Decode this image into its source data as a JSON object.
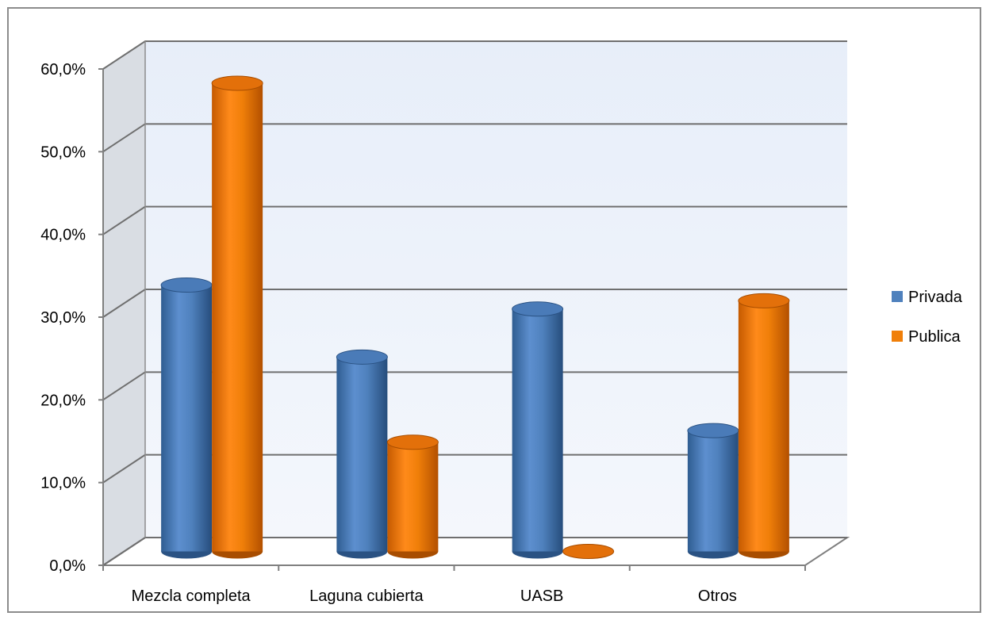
{
  "chart_data": {
    "type": "bar",
    "style": "3d-cylinder",
    "categories": [
      "Mezcla completa",
      "Laguna cubierta",
      "UASB",
      "Otros"
    ],
    "series": [
      {
        "name": "Privada",
        "color": "#4F81BD",
        "values": [
          32.2,
          23.5,
          29.3,
          14.6
        ]
      },
      {
        "name": "Publica",
        "color": "#F07F09",
        "values": [
          56.6,
          13.2,
          0.0,
          30.3
        ]
      }
    ],
    "y_ticks": [
      "0,0%",
      "10,0%",
      "20,0%",
      "30,0%",
      "40,0%",
      "50,0%",
      "60,0%"
    ],
    "ylim": [
      0,
      60
    ],
    "y_format": "percent",
    "grid": true,
    "legend_position": "right",
    "title": "",
    "xlabel": "",
    "ylabel": ""
  }
}
